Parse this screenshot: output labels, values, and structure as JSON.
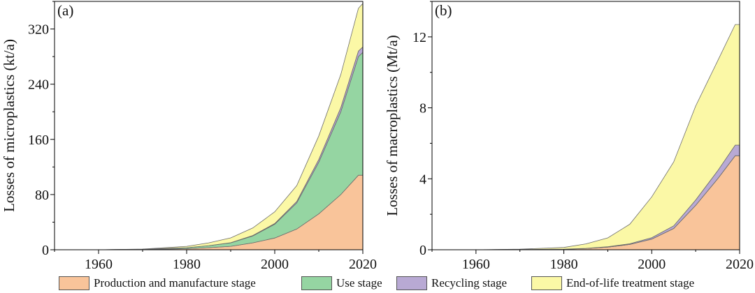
{
  "chart_data": [
    {
      "type": "area",
      "stacked": true,
      "panel_label": "(a)",
      "ylabel": "Losses of microplastics (kt/a)",
      "xlabel": "",
      "xlim": [
        1950,
        2020
      ],
      "ylim": [
        0,
        360
      ],
      "xticks": [
        1960,
        1980,
        2000,
        2020
      ],
      "yticks": [
        0,
        80,
        160,
        240,
        320
      ],
      "xtick_labels": [
        "1960",
        "1980",
        "2000",
        "2020"
      ],
      "ytick_labels": [
        "0",
        "80",
        "160",
        "240",
        "320"
      ],
      "x": [
        1950,
        1960,
        1970,
        1980,
        1985,
        1990,
        1995,
        2000,
        2005,
        2010,
        2015,
        2019,
        2020
      ],
      "series": [
        {
          "name": "Production and manufacture stage",
          "color": "#f9c49a",
          "values": [
            0,
            0,
            0.5,
            1.5,
            3,
            5,
            10,
            17,
            30,
            52,
            80,
            108,
            108
          ]
        },
        {
          "name": "Use stage",
          "color": "#95d5a2",
          "values": [
            0,
            0,
            0.2,
            1.5,
            3,
            5,
            10,
            20,
            38,
            75,
            120,
            172,
            178
          ]
        },
        {
          "name": "Recycling stage",
          "color": "#b8a9d4",
          "values": [
            0,
            0,
            0,
            0,
            0,
            0.2,
            0.6,
            1,
            2,
            4,
            6,
            8,
            8
          ]
        },
        {
          "name": "End-of-life treatment stage",
          "color": "#fbf8a6",
          "values": [
            0,
            0,
            0.3,
            2,
            4,
            7,
            11,
            17,
            23,
            34,
            48,
            62,
            63
          ]
        }
      ]
    },
    {
      "type": "area",
      "stacked": true,
      "panel_label": "(b)",
      "ylabel": "Losses of macroplastics (Mt/a)",
      "xlabel": "",
      "xlim": [
        1950,
        2020
      ],
      "ylim": [
        0,
        14
      ],
      "xticks": [
        1960,
        1980,
        2000,
        2020
      ],
      "yticks": [
        0,
        4,
        8,
        12
      ],
      "xtick_labels": [
        "1960",
        "1980",
        "2000",
        "2020"
      ],
      "ytick_labels": [
        "0",
        "4",
        "8",
        "12"
      ],
      "x": [
        1950,
        1960,
        1970,
        1980,
        1985,
        1990,
        1995,
        2000,
        2005,
        2010,
        2015,
        2019,
        2020
      ],
      "series": [
        {
          "name": "Production and manufacture stage",
          "color": "#f9c49a",
          "values": [
            0,
            0,
            0.01,
            0.03,
            0.07,
            0.15,
            0.3,
            0.6,
            1.2,
            2.5,
            4.0,
            5.3,
            5.3
          ]
        },
        {
          "name": "Use stage",
          "color": "#95d5a2",
          "values": [
            0,
            0,
            0,
            0,
            0,
            0,
            0,
            0,
            0,
            0,
            0,
            0,
            0
          ]
        },
        {
          "name": "Recycling stage",
          "color": "#b8a9d4",
          "values": [
            0,
            0,
            0,
            0,
            0.01,
            0.02,
            0.04,
            0.08,
            0.15,
            0.3,
            0.45,
            0.6,
            0.6
          ]
        },
        {
          "name": "End-of-life treatment stage",
          "color": "#fbf8a6",
          "values": [
            0,
            0,
            0.02,
            0.1,
            0.25,
            0.5,
            1.1,
            2.3,
            3.6,
            5.3,
            6.2,
            6.8,
            6.8
          ]
        }
      ]
    }
  ],
  "legend": {
    "items": [
      {
        "label": "Production and manufacture stage",
        "color": "#f9c49a"
      },
      {
        "label": "Use stage",
        "color": "#95d5a2"
      },
      {
        "label": "Recycling stage",
        "color": "#b8a9d4"
      },
      {
        "label": "End-of-life treatment stage",
        "color": "#fbf8a6"
      }
    ]
  }
}
